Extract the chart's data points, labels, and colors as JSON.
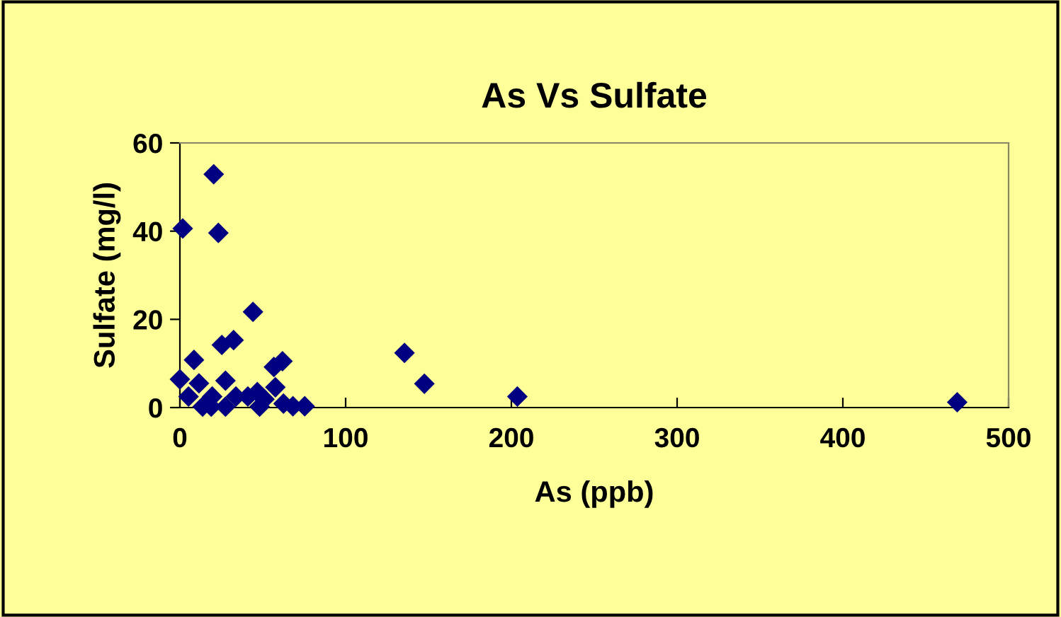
{
  "chart_data": {
    "type": "scatter",
    "title": "As Vs Sulfate",
    "xlabel": "As (ppb)",
    "ylabel": "Sulfate (mg/l)",
    "x": [
      20.4,
      1.7,
      23.2,
      44.1,
      32.4,
      25.3,
      8.5,
      0,
      61.9,
      56.7,
      57.6,
      27.5,
      11.5,
      5.2,
      19.5,
      33.8,
      41,
      46.7,
      51,
      13.7,
      18.9,
      27.5,
      48.1,
      62.5,
      68.2,
      75.3,
      135.5,
      147.5,
      203.6,
      469
    ],
    "values": [
      52.9,
      40.6,
      39.6,
      21.7,
      15.3,
      14.2,
      10.8,
      6.4,
      10.5,
      9.2,
      4.6,
      6.1,
      5.5,
      2.5,
      2.5,
      2.5,
      2.5,
      3.5,
      1.9,
      0.2,
      0.2,
      0.2,
      0.2,
      0.9,
      0.3,
      0.3,
      12.4,
      5.4,
      2.5,
      1.2
    ],
    "color": "#000080",
    "marker": "diamond",
    "xlim": [
      0,
      500
    ],
    "ylim": [
      0,
      60
    ],
    "xticks": [
      0,
      100,
      200,
      300,
      400,
      500
    ],
    "yticks": [
      0,
      20,
      40,
      60
    ],
    "grid": false,
    "legend": false
  }
}
